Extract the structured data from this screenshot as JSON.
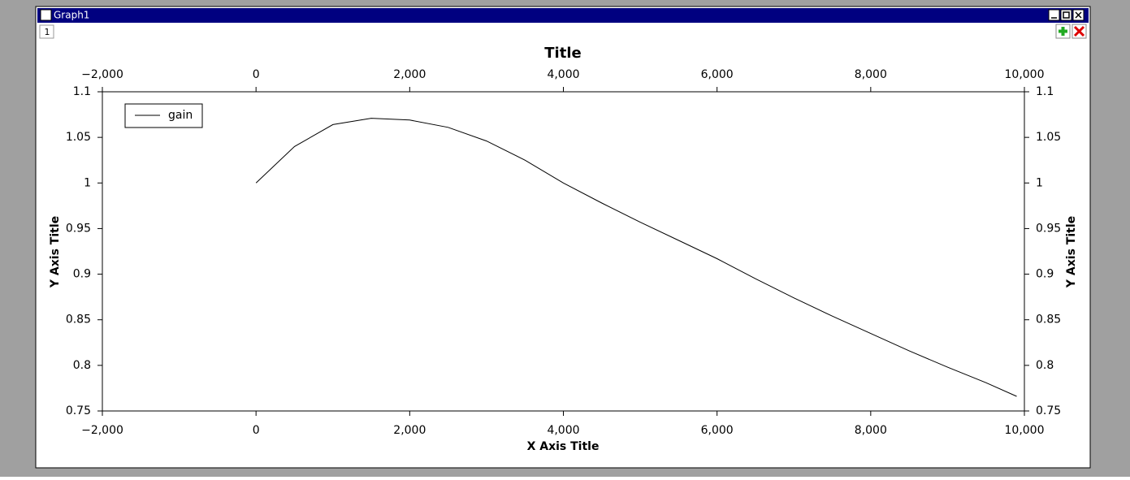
{
  "window": {
    "title": "Graph1",
    "tab": "1"
  },
  "chart_data": {
    "type": "line",
    "title": "Title",
    "x_label": "X Axis Title",
    "y_label": "Y Axis Title",
    "x": [
      0,
      500,
      1000,
      1500,
      2000,
      2500,
      3000,
      3500,
      4000,
      4500,
      5000,
      5500,
      6000,
      6500,
      7000,
      7500,
      8000,
      8500,
      9000,
      9500,
      9900
    ],
    "series": [
      {
        "name": "gain",
        "color": "#000000",
        "values": [
          1.0,
          1.04,
          1.064,
          1.071,
          1.069,
          1.061,
          1.046,
          1.025,
          1.0,
          0.978,
          0.957,
          0.937,
          0.917,
          0.895,
          0.874,
          0.854,
          0.835,
          0.816,
          0.798,
          0.781,
          0.766
        ]
      }
    ],
    "xlim": [
      -2000,
      10000
    ],
    "xticks": [
      {
        "value": -2000,
        "label": "−2,000"
      },
      0,
      {
        "value": 2000,
        "label": "2,000"
      },
      {
        "value": 4000,
        "label": "4,000"
      },
      {
        "value": 6000,
        "label": "6,000"
      },
      {
        "value": 8000,
        "label": "8,000"
      },
      {
        "value": 10000,
        "label": "10,000"
      }
    ],
    "ylim": [
      0.75,
      1.1
    ],
    "yticks": [
      0.75,
      0.8,
      0.85,
      0.9,
      0.95,
      1,
      1.05,
      1.1
    ],
    "legend": "top-left",
    "grid": false
  }
}
